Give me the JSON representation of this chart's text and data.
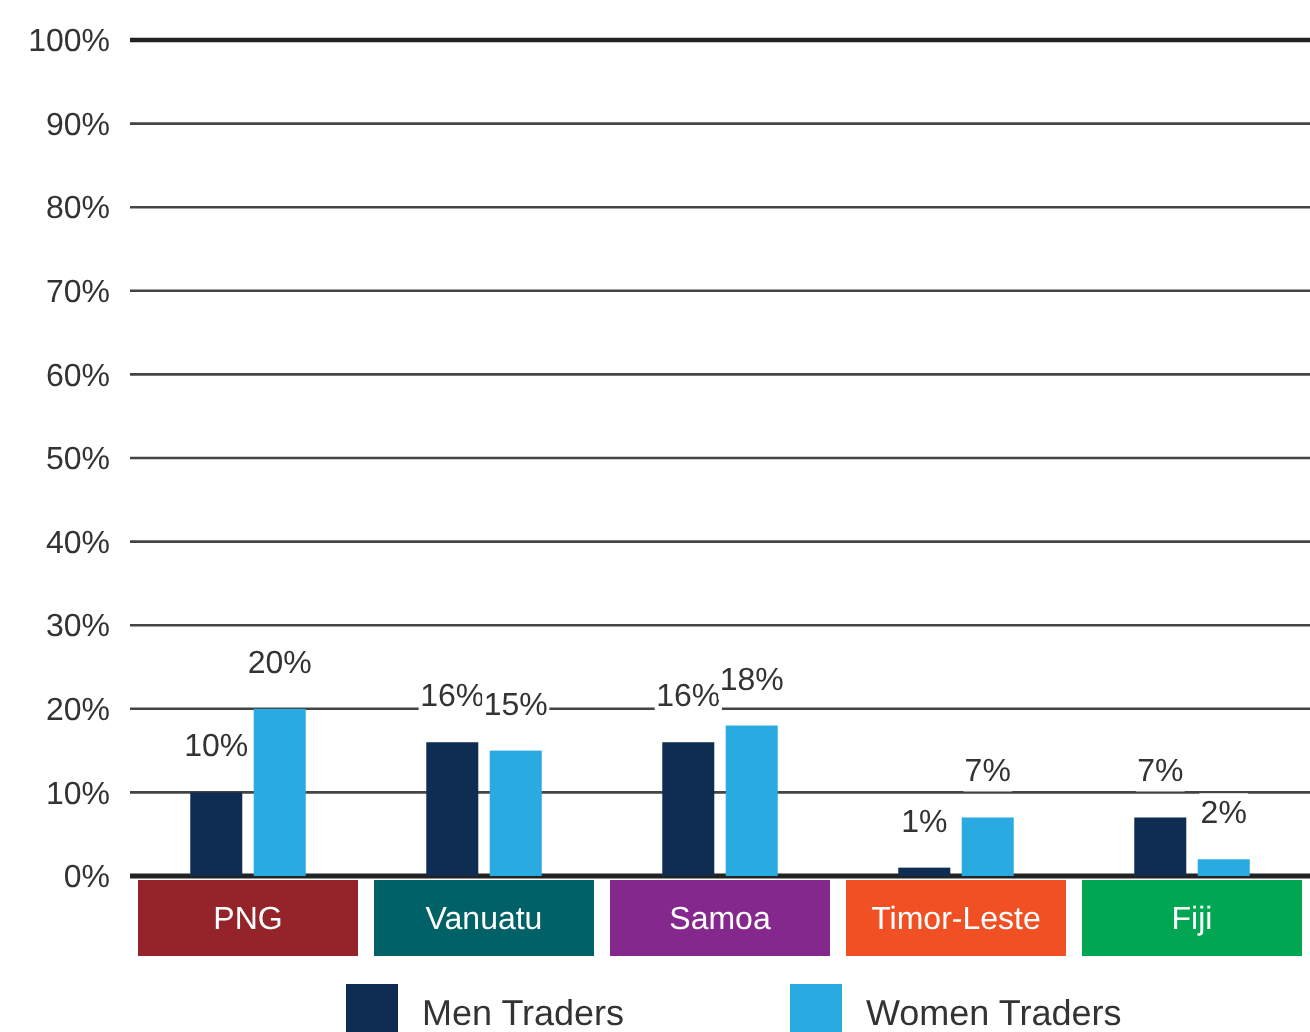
{
  "chart_data": {
    "type": "bar",
    "categories": [
      "PNG",
      "Vanuatu",
      "Samoa",
      "Timor-Leste",
      "Fiji"
    ],
    "series": [
      {
        "name": "Men Traders",
        "color": "#0f2d52",
        "values": [
          10,
          16,
          16,
          1,
          7
        ],
        "value_labels": [
          "10%",
          "16%",
          "16%",
          "1%",
          "7%"
        ]
      },
      {
        "name": "Women Traders",
        "color": "#29abe2",
        "values": [
          20,
          15,
          18,
          7,
          2
        ],
        "value_labels": [
          "20%",
          "15%",
          "18%",
          "7%",
          "2%"
        ]
      }
    ],
    "ylim": [
      0,
      100
    ],
    "yticks": [
      {
        "value": 0,
        "label": "0%"
      },
      {
        "value": 10,
        "label": "10%"
      },
      {
        "value": 20,
        "label": "20%"
      },
      {
        "value": 30,
        "label": "30%"
      },
      {
        "value": 40,
        "label": "40%"
      },
      {
        "value": 50,
        "label": "50%"
      },
      {
        "value": 60,
        "label": "60%"
      },
      {
        "value": 70,
        "label": "70%"
      },
      {
        "value": 80,
        "label": "80%"
      },
      {
        "value": 90,
        "label": "90%"
      },
      {
        "value": 100,
        "label": "100%"
      }
    ],
    "grid": "y",
    "legend": "bottom"
  }
}
